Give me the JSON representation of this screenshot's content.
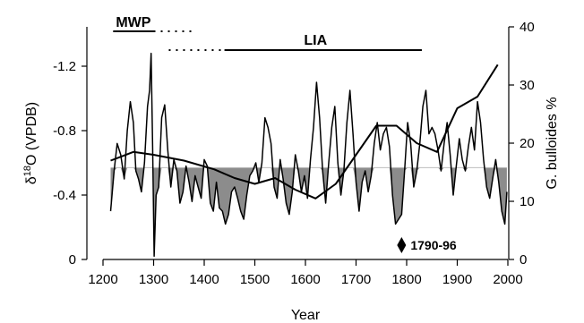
{
  "chart_data": {
    "type": "line",
    "xlabel": "Year",
    "ylabel_left_main": "δ",
    "ylabel_left_sup": "18",
    "ylabel_left_rest": "O (VPDB)",
    "ylabel_right": "G. bulloides %",
    "xlim": [
      1200,
      2000
    ],
    "ylim_left": [
      0,
      -1.4
    ],
    "ylim_right": [
      0,
      40
    ],
    "x_ticks": [
      "1200",
      "1300",
      "1400",
      "1500",
      "1600",
      "1700",
      "1800",
      "1900",
      "2000"
    ],
    "y_left_ticks": [
      "0",
      "-0.4",
      "-0.8",
      "-1.2"
    ],
    "y_right_ticks": [
      "0",
      "10",
      "20",
      "30",
      "40"
    ],
    "reference_level": -0.57,
    "annotations": {
      "mwp": "MWP",
      "lia": "LIA",
      "marker": "1790-96"
    },
    "periods": {
      "mwp_solid": [
        1220,
        1300
      ],
      "mwp_dotted": [
        1300,
        1380
      ],
      "lia_dotted": [
        1330,
        1440
      ],
      "lia_solid": [
        1440,
        1830
      ]
    },
    "marker_year": 1790,
    "series": [
      {
        "axis": "left",
        "x": [
          1215,
          1222,
          1228,
          1235,
          1242,
          1248,
          1254,
          1260,
          1265,
          1270,
          1276,
          1282,
          1288,
          1292,
          1295,
          1298,
          1301,
          1305,
          1310,
          1316,
          1322,
          1328,
          1334,
          1340,
          1346,
          1352,
          1358,
          1364,
          1370,
          1376,
          1382,
          1388,
          1394,
          1400,
          1406,
          1412,
          1418,
          1424,
          1430,
          1436,
          1442,
          1448,
          1454,
          1460,
          1466,
          1472,
          1478,
          1484,
          1490,
          1496,
          1502,
          1508,
          1514,
          1520,
          1526,
          1532,
          1538,
          1544,
          1550,
          1556,
          1562,
          1568,
          1574,
          1580,
          1586,
          1592,
          1598,
          1604,
          1610,
          1616,
          1622,
          1628,
          1634,
          1640,
          1646,
          1652,
          1658,
          1664,
          1670,
          1676,
          1682,
          1688,
          1694,
          1700,
          1706,
          1712,
          1718,
          1724,
          1730,
          1736,
          1742,
          1748,
          1754,
          1760,
          1766,
          1772,
          1778,
          1784,
          1790,
          1796,
          1802,
          1808,
          1814,
          1820,
          1826,
          1832,
          1838,
          1844,
          1850,
          1856,
          1862,
          1868,
          1874,
          1880,
          1886,
          1892,
          1898,
          1904,
          1910,
          1916,
          1922,
          1928,
          1934,
          1940,
          1946,
          1952,
          1958,
          1964,
          1970,
          1976,
          1982,
          1988,
          1994,
          1998
        ],
        "values": [
          -0.3,
          -0.55,
          -0.72,
          -0.65,
          -0.5,
          -0.8,
          -0.98,
          -0.85,
          -0.55,
          -0.5,
          -0.42,
          -0.6,
          -0.95,
          -1.05,
          -1.28,
          -0.7,
          -0.02,
          -0.4,
          -0.45,
          -0.88,
          -0.96,
          -0.68,
          -0.45,
          -0.62,
          -0.55,
          -0.35,
          -0.42,
          -0.58,
          -0.48,
          -0.36,
          -0.52,
          -0.45,
          -0.38,
          -0.62,
          -0.58,
          -0.35,
          -0.3,
          -0.48,
          -0.32,
          -0.3,
          -0.22,
          -0.28,
          -0.42,
          -0.45,
          -0.38,
          -0.3,
          -0.25,
          -0.4,
          -0.52,
          -0.55,
          -0.6,
          -0.48,
          -0.6,
          -0.88,
          -0.82,
          -0.72,
          -0.45,
          -0.38,
          -0.62,
          -0.5,
          -0.35,
          -0.28,
          -0.42,
          -0.65,
          -0.55,
          -0.42,
          -0.52,
          -0.38,
          -0.62,
          -0.82,
          -1.1,
          -0.88,
          -0.55,
          -0.35,
          -0.6,
          -0.82,
          -0.95,
          -0.6,
          -0.4,
          -0.55,
          -0.85,
          -1.05,
          -0.78,
          -0.48,
          -0.3,
          -0.48,
          -0.55,
          -0.42,
          -0.52,
          -0.72,
          -0.85,
          -0.68,
          -0.78,
          -0.82,
          -0.7,
          -0.4,
          -0.22,
          -0.25,
          -0.28,
          -0.55,
          -0.85,
          -0.72,
          -0.45,
          -0.55,
          -0.72,
          -0.95,
          -1.05,
          -0.78,
          -0.82,
          -0.78,
          -0.68,
          -0.55,
          -0.72,
          -0.85,
          -0.65,
          -0.4,
          -0.58,
          -0.75,
          -0.62,
          -0.55,
          -0.7,
          -0.82,
          -0.68,
          -0.98,
          -0.85,
          -0.62,
          -0.45,
          -0.38,
          -0.5,
          -0.62,
          -0.48,
          -0.3,
          -0.22,
          -0.42
        ]
      },
      {
        "axis": "right",
        "x": [
          1215,
          1260,
          1300,
          1360,
          1420,
          1460,
          1500,
          1540,
          1580,
          1620,
          1660,
          1700,
          1740,
          1780,
          1820,
          1860,
          1900,
          1940,
          1980
        ],
        "values": [
          17,
          18.5,
          18,
          17,
          15.5,
          14,
          13,
          14,
          12,
          10.5,
          13,
          18,
          23,
          23,
          20,
          18.5,
          26,
          28,
          33.5
        ]
      }
    ]
  }
}
